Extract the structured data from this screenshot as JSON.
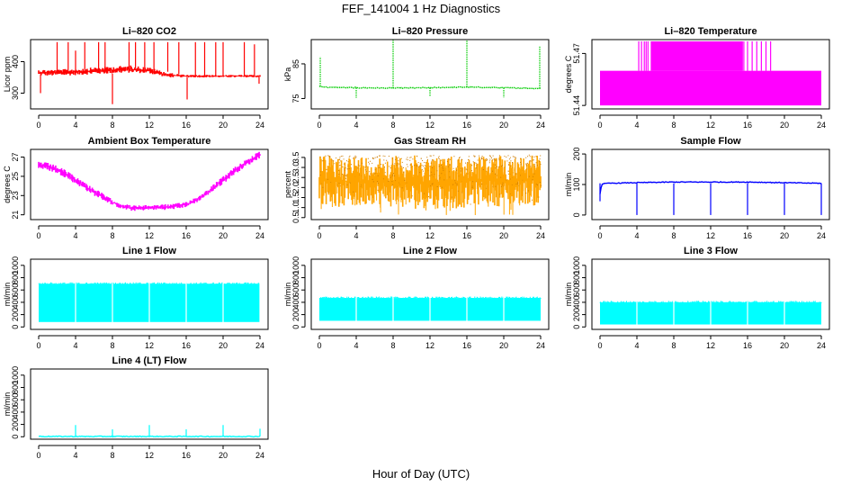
{
  "page": {
    "title": "FEF_141004  1 Hz Diagnostics",
    "xlabel": "Hour of Day (UTC)"
  },
  "chart_data": [
    {
      "id": "co2",
      "type": "line",
      "title": "Li–820 CO2",
      "ylabel": "Licor ppm",
      "color": "#ff0000",
      "xlim": [
        0,
        24
      ],
      "xticks": [
        0,
        4,
        8,
        12,
        16,
        20,
        24
      ],
      "ylim": [
        250,
        470
      ],
      "yticks": [
        300,
        400
      ],
      "series": [
        {
          "style": "band",
          "x": [
            0,
            2,
            4,
            6,
            8,
            10,
            12,
            14,
            16,
            18,
            20,
            22,
            24
          ],
          "lo": [
            355,
            355,
            357,
            360,
            362,
            365,
            362,
            350,
            350,
            350,
            350,
            350,
            350
          ],
          "hi": [
            375,
            375,
            378,
            382,
            385,
            388,
            382,
            365,
            358,
            358,
            358,
            358,
            358
          ]
        },
        {
          "style": "spikes",
          "x": [
            0.2,
            2,
            3.2,
            4,
            5,
            6.5,
            7.2,
            8.0,
            9.8,
            10.5,
            11.5,
            12.5,
            14,
            15.2,
            16.1,
            17,
            18,
            19.2,
            20,
            22.3,
            23.4,
            23.9
          ],
          "base": [
            360,
            360,
            362,
            362,
            365,
            368,
            368,
            362,
            375,
            378,
            376,
            375,
            368,
            360,
            350,
            352,
            352,
            352,
            352,
            352,
            352,
            352
          ],
          "peak": [
            300,
            462,
            462,
            435,
            462,
            462,
            462,
            265,
            462,
            462,
            462,
            462,
            462,
            462,
            280,
            462,
            462,
            462,
            462,
            462,
            455,
            330
          ]
        }
      ]
    },
    {
      "id": "pressure",
      "type": "line",
      "title": "Li–820 Pressure",
      "ylabel": "kPa",
      "color": "#00cc00",
      "xlim": [
        0,
        24
      ],
      "xticks": [
        0,
        4,
        8,
        12,
        16,
        20,
        24
      ],
      "ylim": [
        72,
        92
      ],
      "yticks": [
        75,
        85
      ],
      "series": [
        {
          "style": "line",
          "x": [
            0,
            1,
            4,
            8,
            12,
            16,
            20,
            24
          ],
          "y": [
            78.5,
            78.2,
            78.1,
            78.0,
            78.1,
            78.3,
            78.1,
            77.9
          ]
        },
        {
          "style": "spikes",
          "x": [
            0.1,
            4,
            8,
            12,
            16,
            20,
            23.9
          ],
          "base": [
            78.5,
            78.1,
            78.0,
            78.1,
            78.3,
            78.1,
            77.9
          ],
          "peak": [
            87,
            75.2,
            92,
            75.5,
            92,
            75.3,
            90
          ]
        }
      ]
    },
    {
      "id": "li820temp",
      "type": "area",
      "title": "Li–820 Temperature",
      "ylabel": "degrees C",
      "color": "#ff00ff",
      "xlim": [
        0,
        24
      ],
      "xticks": [
        0,
        4,
        8,
        12,
        16,
        20,
        24
      ],
      "ylim": [
        51.438,
        51.478
      ],
      "yticks": [
        51.44,
        51.47
      ],
      "ytick_labels": [
        "51.44",
        "51.47"
      ],
      "series": [
        {
          "style": "fill",
          "x": [
            0,
            24
          ],
          "lo": 51.44,
          "hi": 51.46
        },
        {
          "style": "fill",
          "x": [
            5.5,
            15.5
          ],
          "lo": 51.46,
          "hi": 51.477
        },
        {
          "style": "spikes",
          "x": [
            4.2,
            4.5,
            4.8,
            5.0,
            5.2,
            15.6,
            16.0,
            16.5,
            17.0,
            17.5,
            18.0,
            18.5
          ],
          "base": 51.46,
          "peak": 51.477
        }
      ]
    },
    {
      "id": "boxtemp",
      "type": "line",
      "title": "Ambient Box Temperature",
      "ylabel": "degrees C",
      "color": "#ff00ff",
      "xlim": [
        0,
        24
      ],
      "xticks": [
        0,
        4,
        8,
        12,
        16,
        20,
        24
      ],
      "ylim": [
        20.5,
        27.8
      ],
      "yticks": [
        21,
        23,
        25,
        27
      ],
      "series": [
        {
          "style": "band",
          "x": [
            0,
            1,
            2,
            3,
            4,
            5,
            6,
            7,
            8,
            9,
            10,
            11,
            12,
            13,
            14,
            15,
            16,
            17,
            18,
            19,
            20,
            21,
            22,
            23,
            24
          ],
          "lo": [
            25.8,
            25.6,
            25.3,
            24.8,
            24.2,
            23.6,
            23.0,
            22.5,
            22.0,
            21.6,
            21.4,
            21.4,
            21.5,
            21.5,
            21.5,
            21.6,
            21.8,
            22.2,
            22.8,
            23.5,
            24.2,
            25.0,
            25.7,
            26.3,
            26.9
          ],
          "hi": [
            26.6,
            26.4,
            26.1,
            25.6,
            25.0,
            24.4,
            23.8,
            23.2,
            22.6,
            22.2,
            22.0,
            22.0,
            22.0,
            22.1,
            22.1,
            22.2,
            22.4,
            22.8,
            23.4,
            24.2,
            25.0,
            25.8,
            26.5,
            27.1,
            27.6
          ]
        }
      ]
    },
    {
      "id": "rh",
      "type": "area",
      "title": "Gas Stream RH",
      "ylabel": "percent",
      "color": "#ffa500",
      "xlim": [
        0,
        24
      ],
      "xticks": [
        0,
        4,
        8,
        12,
        16,
        20,
        24
      ],
      "ylim": [
        0.4,
        3.9
      ],
      "yticks": [
        0.5,
        1.0,
        1.5,
        2.0,
        2.5,
        3.0,
        3.5
      ],
      "ytick_labels": [
        "0.5",
        "1.0",
        "1.5",
        "2.0",
        "2.5",
        "3.0",
        "3.5"
      ],
      "series": [
        {
          "style": "band",
          "x": [
            0,
            2,
            4,
            6,
            8,
            10,
            12,
            14,
            16,
            18,
            20,
            22,
            24
          ],
          "lo": [
            1.2,
            1.0,
            1.0,
            1.2,
            1.0,
            0.9,
            1.0,
            0.9,
            1.0,
            1.2,
            1.0,
            1.2,
            1.0
          ],
          "hi": [
            3.6,
            3.6,
            3.6,
            3.6,
            3.6,
            3.6,
            3.6,
            3.6,
            3.6,
            3.6,
            3.6,
            3.6,
            3.7
          ]
        }
      ]
    },
    {
      "id": "sampleflow",
      "type": "line",
      "title": "Sample Flow",
      "ylabel": "ml/min",
      "color": "#0000ff",
      "xlim": [
        0,
        24
      ],
      "xticks": [
        0,
        4,
        8,
        12,
        16,
        20,
        24
      ],
      "ylim": [
        -15,
        215
      ],
      "yticks": [
        0,
        100,
        200
      ],
      "series": [
        {
          "style": "line",
          "x": [
            0,
            0.2,
            1,
            4,
            8,
            12,
            16,
            20,
            24
          ],
          "y": [
            70,
            102,
            104,
            106,
            108,
            108,
            108,
            106,
            104
          ]
        },
        {
          "style": "spikes",
          "x": [
            0,
            4,
            8,
            12,
            16,
            20,
            24
          ],
          "base": 104,
          "peak": [
            45,
            0,
            0,
            0,
            0,
            0,
            0
          ]
        }
      ]
    },
    {
      "id": "line1",
      "type": "area",
      "title": "Line 1 Flow",
      "ylabel": "ml/min",
      "color": "#00ffff",
      "xlim": [
        0,
        24
      ],
      "xticks": [
        0,
        4,
        8,
        12,
        16,
        20,
        24
      ],
      "ylim": [
        -40,
        1100
      ],
      "yticks": [
        0,
        200,
        400,
        600,
        800,
        1000
      ],
      "series": [
        {
          "style": "fill",
          "x": [
            0,
            24
          ],
          "lo": 80,
          "hi": 700
        },
        {
          "style": "gaps",
          "x": [
            4,
            8,
            12,
            16,
            20,
            24
          ]
        }
      ]
    },
    {
      "id": "line2",
      "type": "area",
      "title": "Line 2 Flow",
      "ylabel": "ml/min",
      "color": "#00ffff",
      "xlim": [
        0,
        24
      ],
      "xticks": [
        0,
        4,
        8,
        12,
        16,
        20,
        24
      ],
      "ylim": [
        -40,
        1100
      ],
      "yticks": [
        0,
        200,
        400,
        600,
        800,
        1000
      ],
      "series": [
        {
          "style": "fill",
          "x": [
            0,
            24
          ],
          "lo": 100,
          "hi": 470
        },
        {
          "style": "gaps",
          "x": [
            4,
            8,
            12,
            16,
            20
          ]
        }
      ]
    },
    {
      "id": "line3",
      "type": "area",
      "title": "Line 3 Flow",
      "ylabel": "ml/min",
      "color": "#00ffff",
      "xlim": [
        0,
        24
      ],
      "xticks": [
        0,
        4,
        8,
        12,
        16,
        20,
        24
      ],
      "ylim": [
        -40,
        1100
      ],
      "yticks": [
        0,
        200,
        400,
        600,
        800,
        1000
      ],
      "series": [
        {
          "style": "fill",
          "x": [
            0,
            24
          ],
          "lo": 40,
          "hi": 400
        },
        {
          "style": "gaps",
          "x": [
            4,
            8,
            12,
            16,
            20
          ]
        }
      ]
    },
    {
      "id": "line4",
      "type": "line",
      "title": "Line 4 (LT) Flow",
      "ylabel": "ml/min",
      "color": "#00ffff",
      "xlim": [
        0,
        24
      ],
      "xticks": [
        0,
        4,
        8,
        12,
        16,
        20,
        24
      ],
      "ylim": [
        -40,
        1100
      ],
      "yticks": [
        0,
        200,
        400,
        600,
        800,
        1000
      ],
      "series": [
        {
          "style": "line",
          "x": [
            0,
            24
          ],
          "y": [
            5,
            5
          ]
        },
        {
          "style": "spikes",
          "x": [
            4,
            8,
            12,
            16,
            20,
            24
          ],
          "base": 5,
          "peak": [
            190,
            120,
            190,
            120,
            190,
            130
          ]
        }
      ]
    }
  ]
}
